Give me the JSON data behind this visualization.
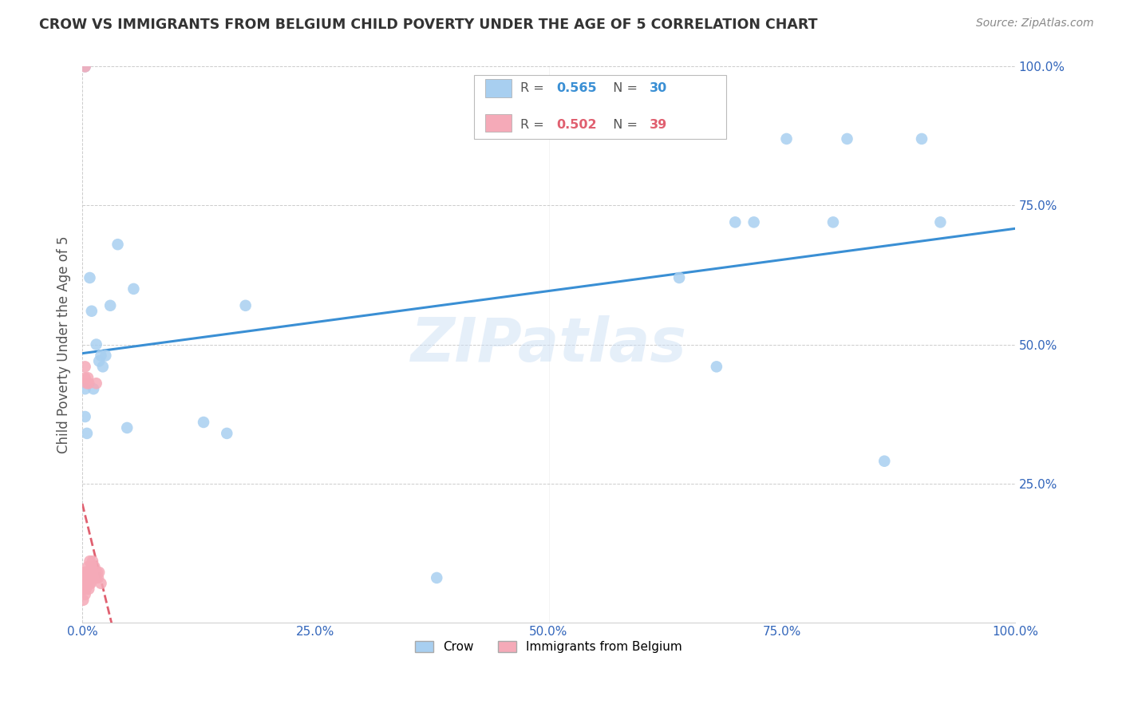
{
  "title": "CROW VS IMMIGRANTS FROM BELGIUM CHILD POVERTY UNDER THE AGE OF 5 CORRELATION CHART",
  "source": "Source: ZipAtlas.com",
  "ylabel": "Child Poverty Under the Age of 5",
  "watermark": "ZIPatlas",
  "legend_bottom": [
    "Crow",
    "Immigrants from Belgium"
  ],
  "legend_top_blue_R": "0.565",
  "legend_top_blue_N": "30",
  "legend_top_pink_R": "0.502",
  "legend_top_pink_N": "39",
  "crow_color": "#a8cff0",
  "immigrants_color": "#f5aab8",
  "trendline_crow_color": "#3a8fd4",
  "trendline_immigrants_color": "#e06070",
  "crow_x": [
    0.003,
    0.003,
    0.008,
    0.01,
    0.015,
    0.018,
    0.02,
    0.022,
    0.03,
    0.038,
    0.055,
    0.13,
    0.155,
    0.175,
    0.38,
    0.64,
    0.68,
    0.7,
    0.72,
    0.755,
    0.805,
    0.82,
    0.86,
    0.9,
    0.92,
    0.003,
    0.005,
    0.012,
    0.025,
    0.048
  ],
  "crow_y": [
    1.0,
    0.37,
    0.62,
    0.56,
    0.5,
    0.47,
    0.48,
    0.46,
    0.57,
    0.68,
    0.6,
    0.36,
    0.34,
    0.57,
    0.08,
    0.62,
    0.46,
    0.72,
    0.72,
    0.87,
    0.72,
    0.87,
    0.29,
    0.87,
    0.72,
    0.42,
    0.34,
    0.42,
    0.48,
    0.35
  ],
  "imm_x": [
    0.001,
    0.001,
    0.002,
    0.002,
    0.003,
    0.003,
    0.003,
    0.003,
    0.003,
    0.004,
    0.004,
    0.005,
    0.005,
    0.005,
    0.006,
    0.006,
    0.006,
    0.007,
    0.007,
    0.007,
    0.008,
    0.008,
    0.008,
    0.009,
    0.009,
    0.01,
    0.01,
    0.011,
    0.011,
    0.012,
    0.013,
    0.014,
    0.015,
    0.015,
    0.016,
    0.017,
    0.018,
    0.02,
    0.003
  ],
  "imm_y": [
    0.04,
    0.06,
    0.07,
    0.08,
    0.05,
    0.07,
    0.09,
    0.44,
    1.0,
    0.06,
    0.09,
    0.07,
    0.09,
    0.43,
    0.07,
    0.1,
    0.44,
    0.06,
    0.08,
    0.43,
    0.07,
    0.09,
    0.11,
    0.07,
    0.09,
    0.08,
    0.1,
    0.08,
    0.11,
    0.09,
    0.1,
    0.09,
    0.08,
    0.43,
    0.09,
    0.08,
    0.09,
    0.07,
    0.46
  ],
  "xlim": [
    0.0,
    1.0
  ],
  "ylim": [
    0.0,
    1.0
  ],
  "xticks": [
    0.0,
    0.25,
    0.5,
    0.75,
    1.0
  ],
  "yticks": [
    0.25,
    0.5,
    0.75,
    1.0
  ],
  "background_color": "#ffffff",
  "grid_color": "#cccccc"
}
